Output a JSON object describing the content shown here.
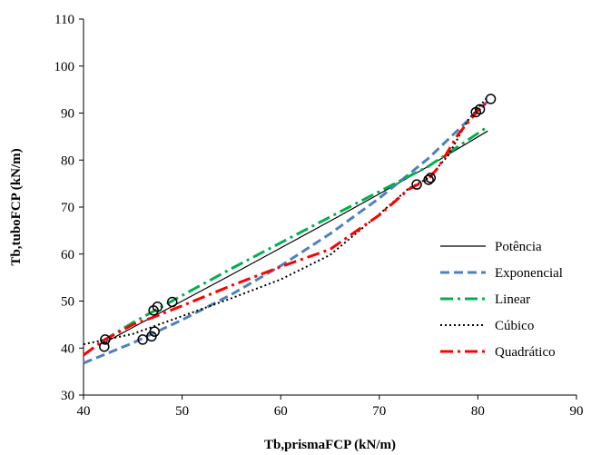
{
  "chart_data": {
    "type": "scatter",
    "xlabel": "Tb,prismaFCP (kN/m)",
    "ylabel": "Tb,tuboFCP (kN/m)",
    "xlim": [
      40,
      90
    ],
    "ylim": [
      30,
      110
    ],
    "xticks": [
      "40",
      "50",
      "60",
      "70",
      "80",
      "90"
    ],
    "yticks": [
      "30",
      "40",
      "50",
      "60",
      "70",
      "80",
      "90",
      "100",
      "110"
    ],
    "grid": false,
    "legend_position": "right",
    "points": [
      {
        "x": 42.1,
        "y": 40.3
      },
      {
        "x": 42.2,
        "y": 41.8
      },
      {
        "x": 46.0,
        "y": 41.8
      },
      {
        "x": 46.9,
        "y": 42.5
      },
      {
        "x": 47.2,
        "y": 43.5
      },
      {
        "x": 47.1,
        "y": 48.0
      },
      {
        "x": 47.5,
        "y": 48.8
      },
      {
        "x": 49.0,
        "y": 49.8
      },
      {
        "x": 73.8,
        "y": 74.8
      },
      {
        "x": 75.0,
        "y": 75.8
      },
      {
        "x": 75.2,
        "y": 76.2
      },
      {
        "x": 79.8,
        "y": 90.2
      },
      {
        "x": 80.2,
        "y": 90.8
      },
      {
        "x": 81.3,
        "y": 93.0
      }
    ],
    "series": [
      {
        "name": "Potência",
        "color": "#000000",
        "style": "solid",
        "x": [
          42,
          45,
          50,
          55,
          60,
          65,
          70,
          75,
          81
        ],
        "y": [
          41.0,
          44.4,
          50.0,
          55.6,
          61.3,
          67.0,
          72.8,
          78.7,
          86.2
        ]
      },
      {
        "name": "Exponencial",
        "color": "#4f81bd",
        "style": "dash",
        "x": [
          40,
          45,
          50,
          55,
          60,
          65,
          70,
          75,
          81
        ],
        "y": [
          36.8,
          41.1,
          46.0,
          51.4,
          57.5,
          64.3,
          71.9,
          80.4,
          92.5
        ]
      },
      {
        "name": "Linear",
        "color": "#00b050",
        "style": "dashdot",
        "x": [
          42,
          45,
          50,
          55,
          60,
          65,
          70,
          75,
          81
        ],
        "y": [
          41.6,
          45.4,
          51.2,
          56.9,
          62.4,
          67.9,
          73.3,
          78.7,
          87.1
        ]
      },
      {
        "name": "Cúbico",
        "color": "#000000",
        "style": "dot",
        "x": [
          40,
          45,
          50,
          55,
          60,
          65,
          70,
          73,
          75,
          77,
          79,
          80,
          81
        ],
        "y": [
          40.8,
          43.0,
          46.8,
          50.6,
          54.6,
          59.8,
          68.5,
          74.0,
          76.2,
          81.0,
          88.5,
          91.0,
          93.5
        ]
      },
      {
        "name": "Quadrático",
        "color": "#ff0000",
        "style": "dashdot",
        "x": [
          40,
          42,
          45,
          47,
          50,
          55,
          60,
          65,
          70,
          73,
          75,
          76,
          78,
          80,
          81
        ],
        "y": [
          38.5,
          41.6,
          45.0,
          46.5,
          49.0,
          53.3,
          57.3,
          61.0,
          68.3,
          73.8,
          76.0,
          78.5,
          85.5,
          90.5,
          92.5
        ]
      }
    ]
  }
}
